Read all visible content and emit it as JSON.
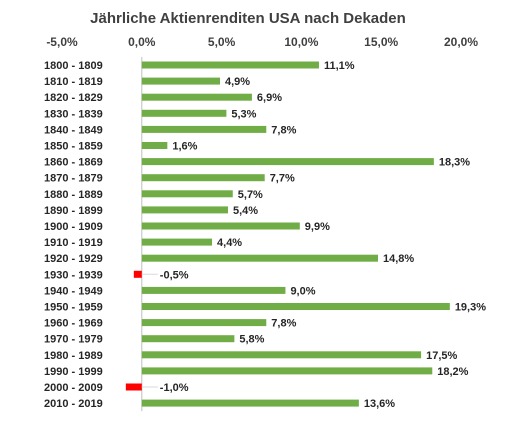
{
  "chart_data": {
    "type": "bar",
    "orientation": "horizontal",
    "title": "Jährliche Aktienrenditen USA nach Dekaden",
    "xlim": [
      -5,
      20
    ],
    "xticks": [
      -5,
      0,
      5,
      10,
      15,
      20
    ],
    "xtick_labels": [
      "-5,0%",
      "0,0%",
      "5,0%",
      "10,0%",
      "15,0%",
      "20,0%"
    ],
    "axis_position": "top",
    "grid": false,
    "categories": [
      "1800 - 1809",
      "1810 - 1819",
      "1820 - 1829",
      "1830 - 1839",
      "1840 - 1849",
      "1850 - 1859",
      "1860 - 1869",
      "1870 - 1879",
      "1880 - 1889",
      "1890 - 1899",
      "1900 - 1909",
      "1910 - 1919",
      "1920 - 1929",
      "1930 - 1939",
      "1940 - 1949",
      "1950 - 1959",
      "1960 - 1969",
      "1970 - 1979",
      "1980 - 1989",
      "1990 - 1999",
      "2000 - 2009",
      "2010 - 2019"
    ],
    "values": [
      11.1,
      4.9,
      6.9,
      5.3,
      7.8,
      1.6,
      18.3,
      7.7,
      5.7,
      5.4,
      9.9,
      4.4,
      14.8,
      -0.5,
      9.0,
      19.3,
      7.8,
      5.8,
      17.5,
      18.2,
      -1.0,
      13.6
    ],
    "value_labels": [
      "11,1%",
      "4,9%",
      "6,9%",
      "5,3%",
      "7,8%",
      "1,6%",
      "18,3%",
      "7,7%",
      "5,7%",
      "5,4%",
      "9,9%",
      "4,4%",
      "14,8%",
      "-0,5%",
      "9,0%",
      "19,3%",
      "7,8%",
      "5,8%",
      "17,5%",
      "18,2%",
      "-1,0%",
      "13,6%"
    ],
    "colors": {
      "positive": "#70ad47",
      "negative": "#ff0000",
      "axis": "#bfbfbf"
    }
  }
}
